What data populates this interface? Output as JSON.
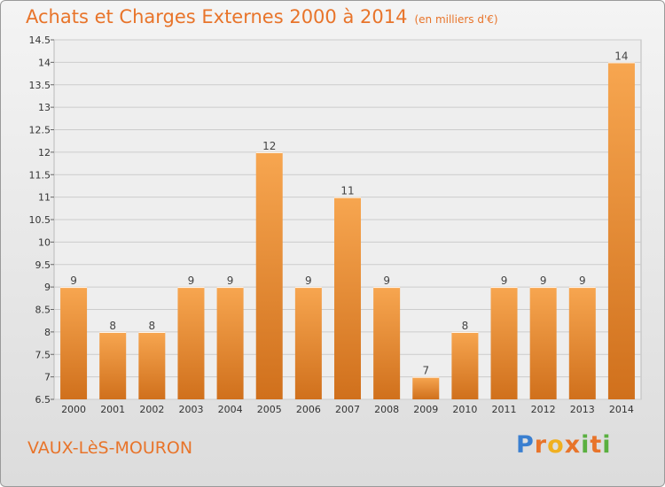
{
  "header": {
    "title": "Achats et Charges Externes 2000 à 2014",
    "unit": "(en milliers d'€)"
  },
  "footer": {
    "town": "VAUX-LèS-MOURON",
    "logo": "Proxiti"
  },
  "colors": {
    "accent": "#e8742a",
    "bar_light": "#f7a650",
    "bar_dark": "#d0701c"
  },
  "chart_data": {
    "type": "bar",
    "title": "Achats et Charges Externes 2000 à 2014",
    "subtitle": "(en milliers d'€)",
    "xlabel": "",
    "ylabel": "",
    "categories": [
      "2000",
      "2001",
      "2002",
      "2003",
      "2004",
      "2005",
      "2006",
      "2007",
      "2008",
      "2009",
      "2010",
      "2011",
      "2012",
      "2013",
      "2014"
    ],
    "values": [
      9,
      8,
      8,
      9,
      9,
      12,
      9,
      11,
      9,
      7,
      8,
      9,
      9,
      9,
      14
    ],
    "ylim": [
      6.5,
      14.5
    ],
    "yticks": [
      "6.5",
      "7",
      "7.5",
      "8",
      "8.5",
      "9",
      "9.5",
      "10",
      "10.5",
      "11",
      "11.5",
      "12",
      "12.5",
      "13",
      "13.5",
      "14",
      "14.5"
    ],
    "grid": true,
    "legend": "none"
  }
}
